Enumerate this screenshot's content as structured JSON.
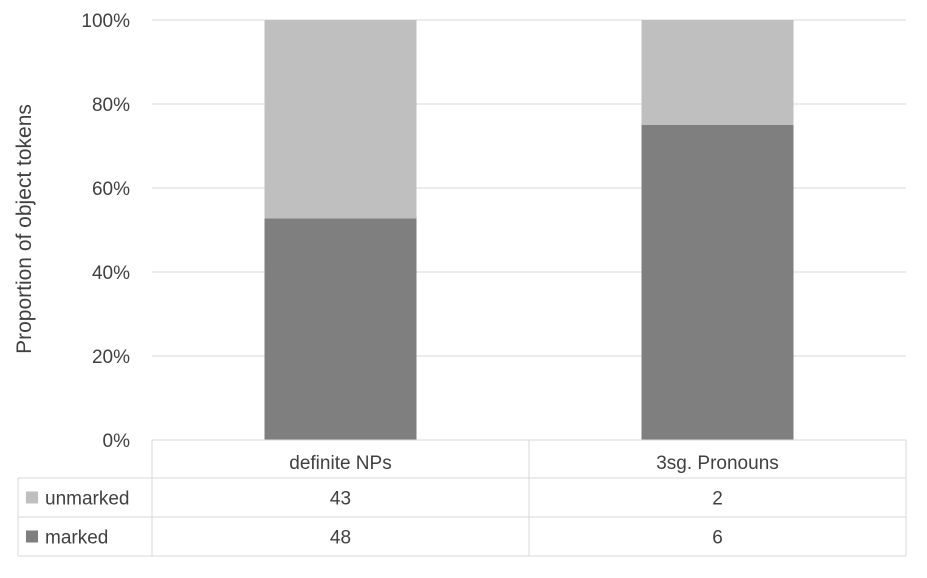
{
  "chart_data": {
    "type": "bar",
    "stacked": true,
    "normalized": true,
    "ylabel": "Proportion of object tokens",
    "ylim": [
      0,
      1
    ],
    "y_ticks": [
      0,
      0.2,
      0.4,
      0.6,
      0.8,
      1.0
    ],
    "y_tick_labels": [
      "0%",
      "20%",
      "40%",
      "60%",
      "80%",
      "100%"
    ],
    "grid": true,
    "categories": [
      "definite NPs",
      "3sg. Pronouns"
    ],
    "series": [
      {
        "name": "marked",
        "values": [
          48,
          6
        ],
        "color": "#7f7f7f"
      },
      {
        "name": "unmarked",
        "values": [
          43,
          2
        ],
        "color": "#bfbfbf"
      }
    ],
    "data_table": {
      "row_order": [
        "unmarked",
        "marked"
      ]
    },
    "legend": "data table"
  }
}
